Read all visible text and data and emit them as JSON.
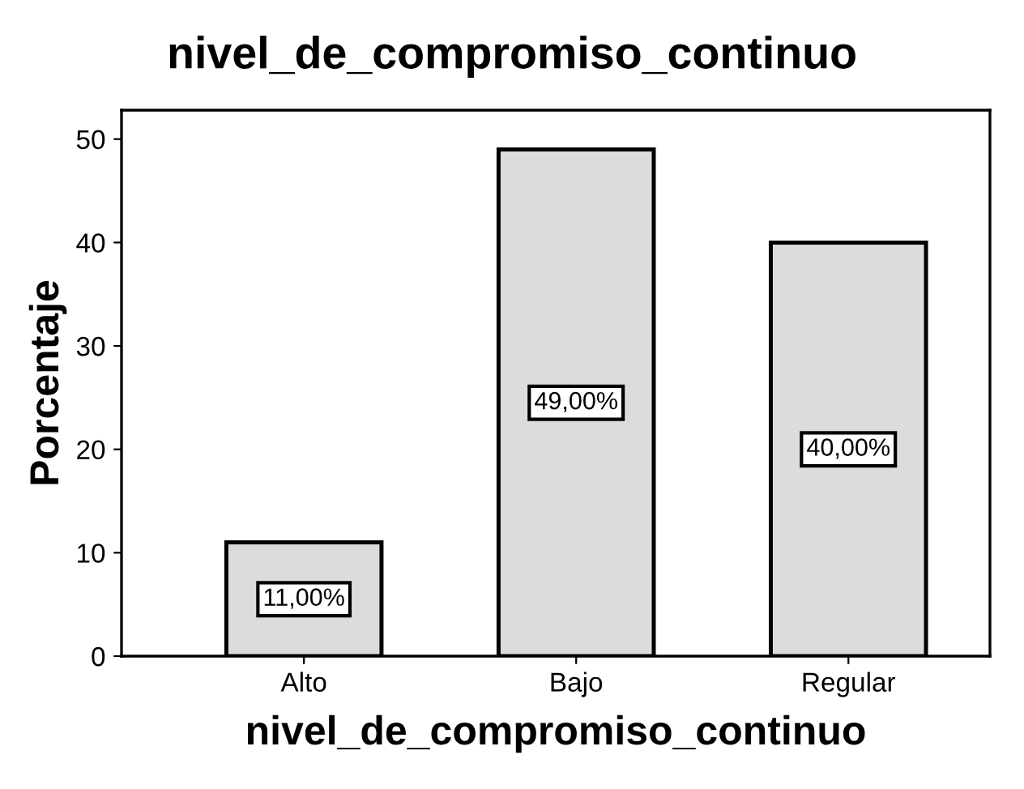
{
  "chart_data": {
    "type": "bar",
    "title": "nivel_de_compromiso_continuo",
    "xlabel": "nivel_de_compromiso_continuo",
    "ylabel": "Porcentaje",
    "categories": [
      "Alto",
      "Bajo",
      "Regular"
    ],
    "values": [
      11,
      49,
      40
    ],
    "value_labels": [
      "11,00%",
      "49,00%",
      "40,00%"
    ],
    "color": "#dcdcdc",
    "ylim": [
      0,
      52.8
    ],
    "yticks": [
      0,
      10,
      20,
      30,
      40,
      50
    ],
    "grid": false
  }
}
